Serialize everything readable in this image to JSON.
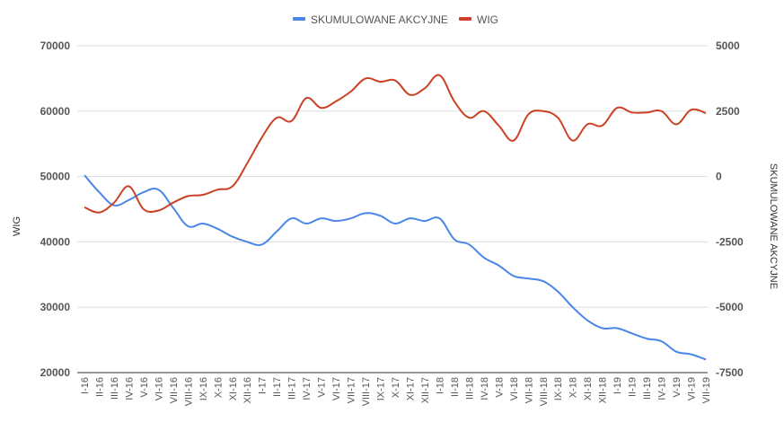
{
  "chart_data": {
    "type": "line",
    "categories": [
      "I-16",
      "II-16",
      "III-16",
      "IV-16",
      "V-16",
      "VI-16",
      "VII-16",
      "VIII-16",
      "IX-16",
      "X-16",
      "XI-16",
      "XII-16",
      "I-17",
      "II-17",
      "III-17",
      "IV-17",
      "V-17",
      "VI-17",
      "VII-17",
      "VIII-17",
      "IX-17",
      "X-17",
      "XI-17",
      "XII-17",
      "I-18",
      "II-18",
      "III-18",
      "IV-18",
      "V-18",
      "VI-18",
      "VII-18",
      "VIII-18",
      "IX-18",
      "X-18",
      "XI-18",
      "XII-18",
      "I-19",
      "II-19",
      "III-19",
      "IV-19",
      "V-19",
      "VI-19",
      "VII-19"
    ],
    "series": [
      {
        "name": "SKUMULOWANE AKCYJNE",
        "axis": "right",
        "color": "#4a86e8",
        "values": [
          50,
          -600,
          -1100,
          -900,
          -600,
          -500,
          -1200,
          -1900,
          -1800,
          -2000,
          -2300,
          -2500,
          -2600,
          -2100,
          -1600,
          -1800,
          -1600,
          -1700,
          -1600,
          -1400,
          -1500,
          -1800,
          -1600,
          -1700,
          -1600,
          -2400,
          -2600,
          -3100,
          -3400,
          -3800,
          -3900,
          -4000,
          -4400,
          -5000,
          -5500,
          -5800,
          -5800,
          -6000,
          -6200,
          -6300,
          -6700,
          -6800,
          -7000
        ]
      },
      {
        "name": "WIG",
        "axis": "left",
        "color": "#cc4125",
        "values": [
          45300,
          44500,
          46000,
          48500,
          45000,
          44800,
          46000,
          47000,
          47200,
          48000,
          48500,
          52000,
          56000,
          59000,
          58500,
          62000,
          60500,
          61500,
          63000,
          65000,
          64500,
          64700,
          62500,
          63500,
          65500,
          61500,
          59000,
          60000,
          57800,
          55500,
          59500,
          60000,
          59000,
          55500,
          58000,
          57800,
          60500,
          59800,
          59800,
          60000,
          58000,
          60200,
          59700
        ]
      }
    ],
    "y_left": {
      "label": "WIG",
      "ylim": [
        20000,
        70000
      ],
      "ticks": [
        "20000",
        "30000",
        "40000",
        "50000",
        "60000",
        "70000"
      ]
    },
    "y_right": {
      "label": "SKUMULOWANE AKCYJNE",
      "ylim": [
        -7500,
        5000
      ],
      "ticks": [
        "-7500",
        "-5000",
        "-2500",
        "0",
        "2500",
        "5000"
      ]
    },
    "grid": true,
    "legend_position": "top-center"
  }
}
